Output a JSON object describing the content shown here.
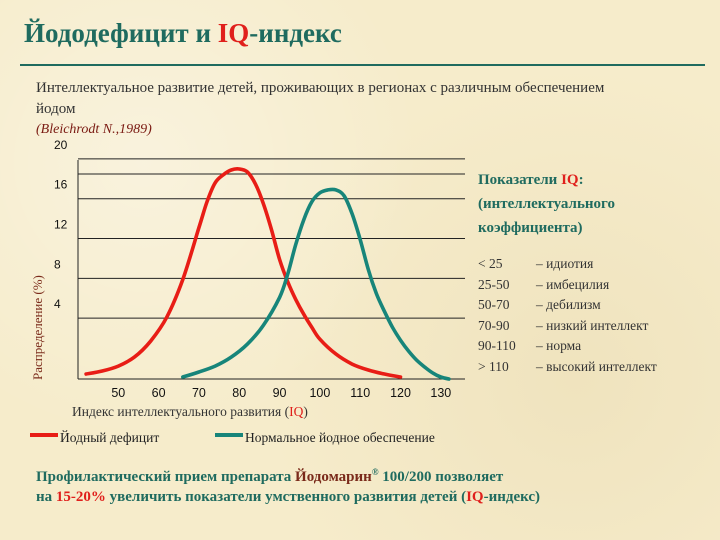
{
  "slide": {
    "title_main": "Йододефицит и ",
    "title_iq": "IQ",
    "title_end": "-индекс",
    "subtitle": "Интеллектуальное развитие детей, проживающих в регионах с различным обеспечением йодом",
    "citation": "(Bleichrodt N.,1989)"
  },
  "chart_data": {
    "type": "line",
    "xlabel_prefix": "Индекс интеллектуального развития (",
    "xlabel_iq": "IQ",
    "xlabel_suffix": ")",
    "ylabel": "Распределение (%)",
    "x_ticks": [
      "50",
      "60",
      "70",
      "80",
      "90",
      "100",
      "110",
      "120",
      "130"
    ],
    "y_ticks": [
      "4",
      "8",
      "12",
      "16",
      "20"
    ],
    "xlim": [
      40,
      136
    ],
    "ylim": [
      0,
      22
    ],
    "grid": "horizontal",
    "series": [
      {
        "name": "Йодный дефицит",
        "color": "#e81d16",
        "x": [
          42,
          46,
          50,
          54,
          58,
          62,
          66,
          70,
          72,
          74,
          76,
          78,
          80,
          82,
          84,
          86,
          88,
          90,
          92,
          94,
          96,
          98,
          100,
          104,
          108,
          112,
          116,
          120
        ],
        "y": [
          0.5,
          0.8,
          1.3,
          2.2,
          3.8,
          6.2,
          10.0,
          15.2,
          17.8,
          19.7,
          20.5,
          21.0,
          21.1,
          20.8,
          19.6,
          17.6,
          15.0,
          12.0,
          9.8,
          8.0,
          6.5,
          5.2,
          4.0,
          2.5,
          1.5,
          0.9,
          0.5,
          0.2
        ]
      },
      {
        "name": "Нормальное йодное обеспечение",
        "color": "#17857a",
        "x": [
          66,
          70,
          74,
          78,
          82,
          86,
          90,
          92,
          94,
          96,
          98,
          100,
          102,
          104,
          106,
          108,
          110,
          112,
          114,
          116,
          118,
          120,
          122,
          124,
          126,
          128,
          130,
          132
        ],
        "y": [
          0.2,
          0.7,
          1.3,
          2.2,
          3.5,
          5.4,
          8.2,
          10.5,
          13.5,
          16.0,
          17.8,
          18.7,
          19.0,
          19.0,
          18.4,
          16.6,
          14.0,
          11.0,
          8.6,
          6.8,
          5.2,
          3.9,
          2.8,
          1.9,
          1.2,
          0.6,
          0.2,
          0.0
        ]
      }
    ]
  },
  "sidebar": {
    "title_prefix": "Показатели ",
    "title_iq": "IQ",
    "title_colon": ":",
    "title_line2": "(интеллектуального",
    "title_line3": "коэффициента)",
    "rows": [
      {
        "range": "< 25",
        "label": "– идиотия"
      },
      {
        "range": "25-50",
        "label": "– имбецилия"
      },
      {
        "range": "50-70",
        "label": "– дебилизм"
      },
      {
        "range": "70-90",
        "label": "– низкий интеллект"
      },
      {
        "range": "90-110",
        "label": " – норма"
      },
      {
        "range": "> 110",
        "label": "– высокий интеллект"
      }
    ]
  },
  "footer": {
    "line1_a": "Профилактический прием препарата ",
    "drug": "Йодомарин",
    "reg": "®",
    "line1_b": " 100/200 позволяет",
    "line2_a": "на ",
    "percent": "15-20%",
    "line2_b": " увеличить показатели умственного развития детей (",
    "iq": "IQ",
    "line2_c": "-индекс)"
  }
}
